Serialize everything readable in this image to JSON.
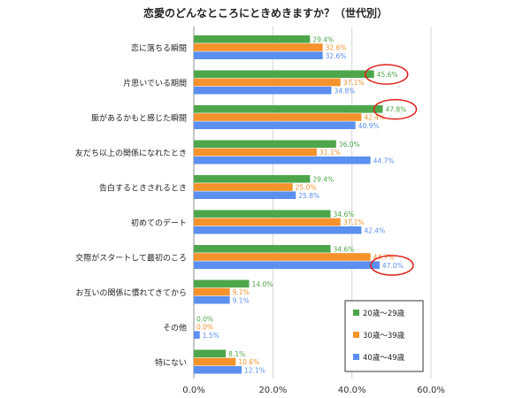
{
  "chart_data": {
    "type": "bar",
    "orientation": "horizontal",
    "title": "恋愛のどんなところにときめきますか？（世代別）",
    "categories": [
      "恋に落ちる瞬間",
      "片思いでいる期間",
      "脈があるかもと感じた瞬間",
      "友だち以上の関係になれたとき",
      "告白するときされるとき",
      "初めてのデート",
      "交際がスタートして最初のころ",
      "お互いの関係に慣れてきてから",
      "その他",
      "特にない"
    ],
    "series": [
      {
        "name": "20歳～29歳",
        "color": "#4ea64b",
        "values": [
          29.4,
          45.6,
          47.8,
          36.0,
          29.4,
          34.6,
          34.6,
          14.0,
          0.0,
          8.1
        ],
        "labels": [
          "29.4%",
          "45.6%",
          "47.8%",
          "36.0%",
          "29.4%",
          "34.6%",
          "34.6%",
          "14.0%",
          "0.0%",
          "8.1%"
        ]
      },
      {
        "name": "30歳～39歳",
        "color": "#f5922b",
        "values": [
          32.6,
          37.1,
          42.4,
          31.1,
          25.0,
          37.1,
          44.7,
          9.1,
          0.0,
          10.6
        ],
        "labels": [
          "32.6%",
          "37.1%",
          "42.4%",
          "31.1%",
          "25.0%",
          "37.1%",
          "44.7%",
          "9.1%",
          "0.0%",
          "10.6%"
        ]
      },
      {
        "name": "40歳～49歳",
        "color": "#5b8ff0",
        "values": [
          32.6,
          34.8,
          40.9,
          44.7,
          25.8,
          42.4,
          47.0,
          9.1,
          1.5,
          12.1
        ],
        "labels": [
          "32.6%",
          "34.8%",
          "40.9%",
          "44.7%",
          "25.8%",
          "42.4%",
          "47.0%",
          "9.1%",
          "1.5%",
          "12.1%"
        ]
      }
    ],
    "xlim": [
      0,
      60
    ],
    "xticks": [
      0,
      20,
      40,
      60
    ],
    "xtick_labels": [
      "0.0%",
      "20.0%",
      "40.0%",
      "60.0%"
    ],
    "grid": true,
    "legend_position": "bottom-right",
    "highlight_circles": [
      {
        "category_index": 1,
        "series_index": 0
      },
      {
        "category_index": 2,
        "series_index": 0
      },
      {
        "category_index": 6,
        "series_index": 2
      }
    ],
    "highlight_color": "#e0201b"
  }
}
